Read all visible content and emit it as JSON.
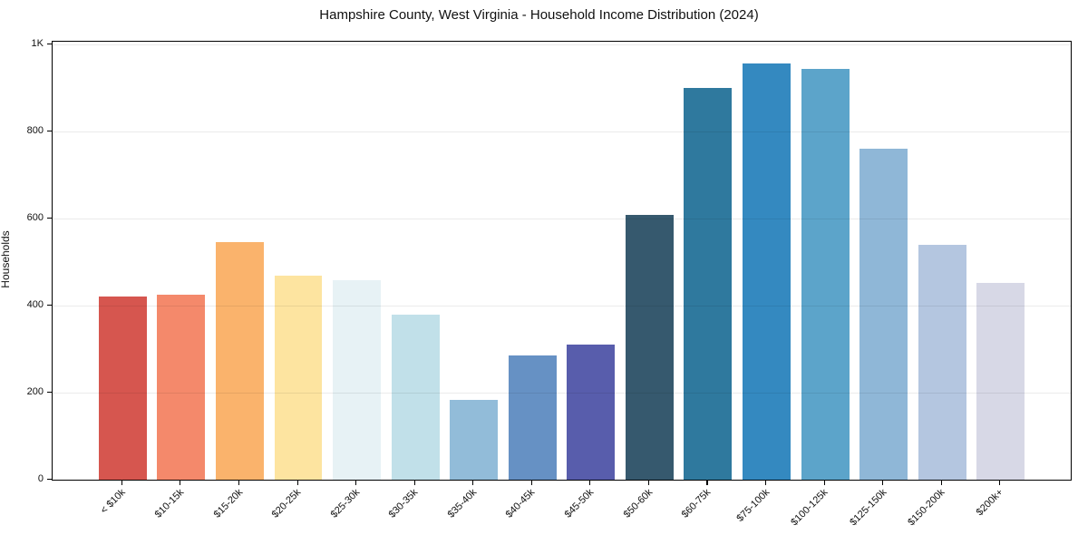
{
  "chart_data": {
    "type": "bar",
    "title": "Hampshire County, West Virginia - Household Income Distribution (2024)",
    "xlabel": "",
    "ylabel": "Households",
    "categories": [
      "< $10k",
      "$10-15k",
      "$15-20k",
      "$20-25k",
      "$25-30k",
      "$30-35k",
      "$35-40k",
      "$40-45k",
      "$45-50k",
      "$50-60k",
      "$60-75k",
      "$75-100k",
      "$100-125k",
      "$125-150k",
      "$150-200k",
      "$200k+"
    ],
    "values": [
      420,
      425,
      546,
      468,
      458,
      380,
      183,
      285,
      310,
      608,
      900,
      957,
      943,
      760,
      539,
      452
    ],
    "bar_colors": [
      "#d6564f",
      "#f4896b",
      "#fab36c",
      "#fde4a0",
      "#e7f2f5",
      "#c1e0e9",
      "#92bcd9",
      "#6691c4",
      "#585dac",
      "#36596e",
      "#2f799e",
      "#3489c0",
      "#5ca4ca",
      "#8fb7d7",
      "#b4c6e0",
      "#d7d8e6"
    ],
    "ylim": [
      0,
      1000
    ],
    "yticks": {
      "values": [
        0,
        200,
        400,
        600,
        800,
        1000
      ],
      "labels": [
        "0",
        "200",
        "400",
        "600",
        "800",
        "1K"
      ]
    },
    "grid": "horizontal",
    "legend": "none",
    "axis_color": "#000000",
    "grid_color": "#ececec",
    "background_color": "#ffffff"
  }
}
